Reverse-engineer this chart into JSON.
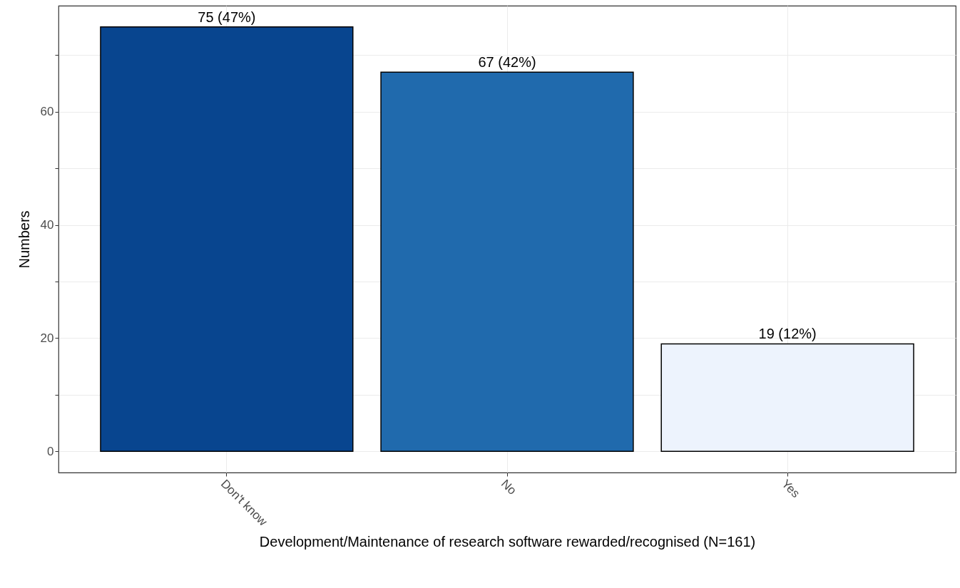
{
  "chart_data": {
    "type": "bar",
    "xlabel": "Development/Maintenance of research software rewarded/recognised (N=161)",
    "ylabel": "Numbers",
    "categories": [
      "Don't know",
      "No",
      "Yes"
    ],
    "values": [
      75,
      67,
      19
    ],
    "colors": [
      "#08458f",
      "#206aad",
      "#edf3fd"
    ],
    "value_labels": [
      "75 (47%)",
      "67 (42%)",
      "19 (12%)"
    ],
    "ylim": [
      -3.75,
      78.75
    ],
    "yticks": [
      0,
      {
        "value": 10,
        "label": null
      },
      20,
      {
        "value": 30,
        "label": null
      },
      40,
      {
        "value": 50,
        "label": null
      },
      60,
      {
        "value": 70,
        "label": null
      }
    ],
    "grid": true
  }
}
